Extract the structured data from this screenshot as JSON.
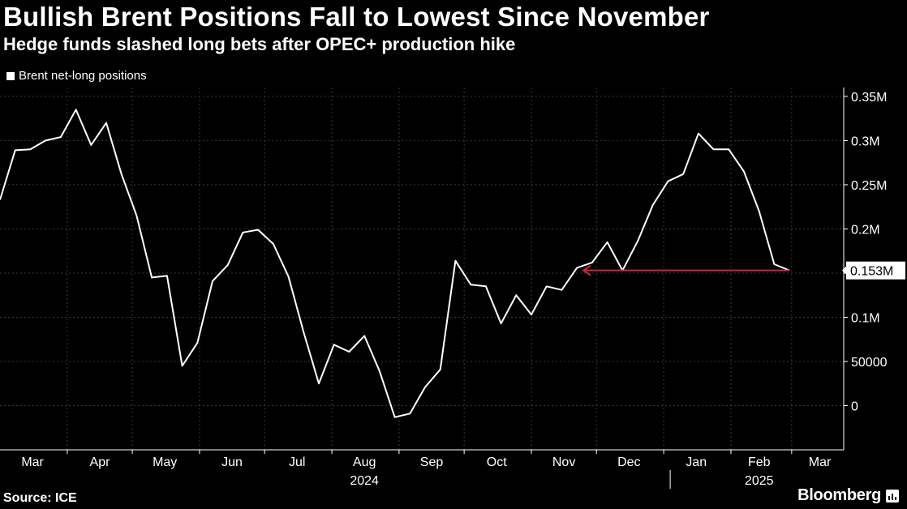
{
  "title": "Bullish Brent Positions Fall to Lowest Since November",
  "subtitle": "Hedge funds slashed long bets after OPEC+ production hike",
  "source": "Source: ICE",
  "brand": "Bloomberg",
  "colors": {
    "background": "#000000",
    "line": "#ffffff",
    "grid": "#3a3a3a",
    "annotation": "#d0233c"
  },
  "chart_data": {
    "type": "line",
    "legend": "top-left",
    "grid": true,
    "yaxis_side": "right",
    "ylim": [
      -50000,
      360000
    ],
    "yticks": [
      {
        "value": 350000,
        "label": "0.35M"
      },
      {
        "value": 300000,
        "label": "0.3M"
      },
      {
        "value": 250000,
        "label": "0.25M"
      },
      {
        "value": 200000,
        "label": "0.2M"
      },
      {
        "value": 150000,
        "label": ""
      },
      {
        "value": 100000,
        "label": "0.1M"
      },
      {
        "value": 50000,
        "label": "50000"
      },
      {
        "value": 0,
        "label": "0"
      }
    ],
    "xlim": [
      "2024-03-01",
      "2025-03-25"
    ],
    "month_labels": [
      {
        "date": "2024-03-16",
        "label": "Mar"
      },
      {
        "date": "2024-04-16",
        "label": "Apr"
      },
      {
        "date": "2024-05-16",
        "label": "May"
      },
      {
        "date": "2024-06-16",
        "label": "Jun"
      },
      {
        "date": "2024-07-16",
        "label": "Jul"
      },
      {
        "date": "2024-08-16",
        "label": "Aug"
      },
      {
        "date": "2024-09-16",
        "label": "Sep"
      },
      {
        "date": "2024-10-16",
        "label": "Oct"
      },
      {
        "date": "2024-11-16",
        "label": "Nov"
      },
      {
        "date": "2024-12-16",
        "label": "Dec"
      },
      {
        "date": "2025-01-16",
        "label": "Jan"
      },
      {
        "date": "2025-02-14",
        "label": "Feb"
      },
      {
        "date": "2025-03-14",
        "label": "Mar"
      }
    ],
    "year_labels": [
      {
        "date": "2024-08-16",
        "label": "2024"
      },
      {
        "date": "2025-02-14",
        "label": "2025"
      }
    ],
    "year_separator": "2025-01-01",
    "series": [
      {
        "name": "Brent net-long positions",
        "points": [
          [
            "2024-03-01",
            233000
          ],
          [
            "2024-03-08",
            289000
          ],
          [
            "2024-03-15",
            290000
          ],
          [
            "2024-03-22",
            300000
          ],
          [
            "2024-03-29",
            304000
          ],
          [
            "2024-04-05",
            335000
          ],
          [
            "2024-04-12",
            295000
          ],
          [
            "2024-04-19",
            320000
          ],
          [
            "2024-04-26",
            262000
          ],
          [
            "2024-05-03",
            215000
          ],
          [
            "2024-05-10",
            145000
          ],
          [
            "2024-05-17",
            147000
          ],
          [
            "2024-05-24",
            45000
          ],
          [
            "2024-05-31",
            71000
          ],
          [
            "2024-06-07",
            141000
          ],
          [
            "2024-06-14",
            159000
          ],
          [
            "2024-06-21",
            196000
          ],
          [
            "2024-06-28",
            199000
          ],
          [
            "2024-07-05",
            183000
          ],
          [
            "2024-07-12",
            146000
          ],
          [
            "2024-07-19",
            83000
          ],
          [
            "2024-07-26",
            25000
          ],
          [
            "2024-08-02",
            69000
          ],
          [
            "2024-08-09",
            61000
          ],
          [
            "2024-08-16",
            79000
          ],
          [
            "2024-08-23",
            39000
          ],
          [
            "2024-08-30",
            -13000
          ],
          [
            "2024-09-06",
            -9000
          ],
          [
            "2024-09-13",
            21000
          ],
          [
            "2024-09-20",
            41000
          ],
          [
            "2024-09-27",
            164000
          ],
          [
            "2024-10-04",
            137000
          ],
          [
            "2024-10-11",
            135000
          ],
          [
            "2024-10-18",
            93000
          ],
          [
            "2024-10-25",
            125000
          ],
          [
            "2024-11-01",
            103000
          ],
          [
            "2024-11-08",
            135000
          ],
          [
            "2024-11-15",
            131000
          ],
          [
            "2024-11-22",
            156000
          ],
          [
            "2024-11-29",
            162000
          ],
          [
            "2024-12-06",
            185000
          ],
          [
            "2024-12-13",
            153000
          ],
          [
            "2024-12-20",
            186000
          ],
          [
            "2024-12-27",
            227000
          ],
          [
            "2025-01-03",
            254000
          ],
          [
            "2025-01-10",
            262000
          ],
          [
            "2025-01-17",
            308000
          ],
          [
            "2025-01-24",
            290000
          ],
          [
            "2025-01-31",
            290000
          ],
          [
            "2025-02-07",
            265000
          ],
          [
            "2025-02-14",
            220000
          ],
          [
            "2025-02-21",
            160000
          ],
          [
            "2025-02-28",
            153000
          ]
        ]
      }
    ],
    "annotation": {
      "from": "2025-02-28",
      "to": "2024-11-22",
      "value": 153000,
      "label": "0.153M"
    }
  }
}
